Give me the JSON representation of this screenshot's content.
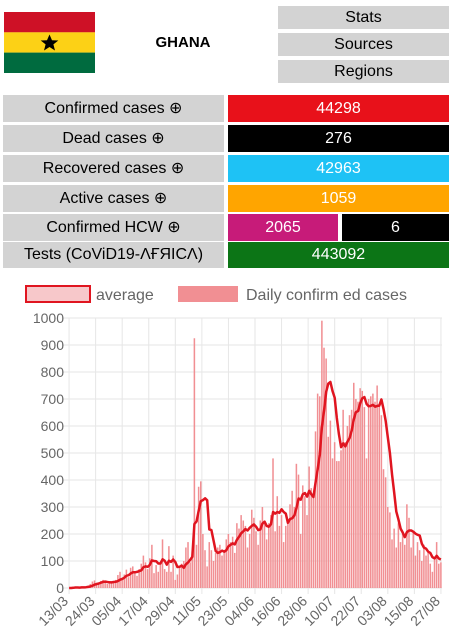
{
  "header": {
    "country": "GHANA"
  },
  "nav": [
    {
      "label": "Stats"
    },
    {
      "label": "Sources"
    },
    {
      "label": "Regions"
    }
  ],
  "stats": {
    "confirmed": {
      "label": "Confirmed cases ⊕",
      "value": "44298",
      "color": "#e8111a"
    },
    "dead": {
      "label": "Dead cases ⊕",
      "value": "276",
      "color": "#000000"
    },
    "recovered": {
      "label": "Recovered cases ⊕",
      "value": "42963",
      "color": "#1ec2f5"
    },
    "active": {
      "label": "Active cases ⊕",
      "value": "1059",
      "color": "#ffa500"
    },
    "hcw": {
      "label": "Confirmed HCW ⊕",
      "value1": "2065",
      "value2": "6",
      "color1": "#c71b79",
      "color2": "#000000"
    },
    "tests": {
      "label": "Tests (CoViD19-ΛҒЯICΛ)",
      "value": "443092",
      "color": "#0c7516"
    }
  },
  "chart_data": {
    "type": "bar+line",
    "legend": [
      "average",
      "Daily confirm ed cases"
    ],
    "legend_position": "top",
    "ylim": [
      0,
      1000
    ],
    "yticks": [
      0,
      100,
      200,
      300,
      400,
      500,
      600,
      700,
      800,
      900,
      1000
    ],
    "xticks": [
      "13/03",
      "24/03",
      "05/04",
      "17/04",
      "29/04",
      "11/05",
      "23/05",
      "04/06",
      "16/06",
      "28/06",
      "10/07",
      "22/07",
      "03/08",
      "15/08",
      "27/08"
    ],
    "grid": true,
    "bar_color": "#f18f93",
    "line_color": "#e01520",
    "daily": [
      0,
      0,
      2,
      5,
      3,
      0,
      6,
      0,
      6,
      9,
      15,
      24,
      28,
      20,
      15,
      26,
      30,
      22,
      15,
      20,
      18,
      25,
      30,
      48,
      60,
      35,
      50,
      68,
      40,
      75,
      80,
      60,
      45,
      70,
      90,
      120,
      95,
      70,
      110,
      160,
      55,
      85,
      60,
      95,
      180,
      70,
      60,
      155,
      60,
      120,
      30,
      50,
      75,
      90,
      100,
      150,
      170,
      95,
      130,
      925,
      160,
      375,
      395,
      200,
      140,
      80,
      170,
      140,
      100,
      130,
      150,
      160,
      120,
      140,
      180,
      200,
      170,
      190,
      130,
      240,
      220,
      270,
      250,
      230,
      150,
      200,
      290,
      260,
      210,
      160,
      250,
      300,
      250,
      180,
      240,
      270,
      480,
      210,
      340,
      230,
      270,
      170,
      230,
      240,
      310,
      360,
      300,
      460,
      420,
      200,
      380,
      340,
      270,
      450,
      370,
      350,
      580,
      720,
      710,
      990,
      890,
      850,
      560,
      620,
      480,
      540,
      470,
      470,
      510,
      660,
      540,
      600,
      640,
      660,
      760,
      700,
      690,
      740,
      730,
      670,
      480,
      700,
      710,
      720,
      690,
      750,
      680,
      640,
      440,
      410,
      300,
      280,
      180,
      220,
      150,
      240,
      170,
      200,
      160,
      310,
      260,
      150,
      210,
      120,
      170,
      140,
      100,
      160,
      120,
      130,
      90,
      60,
      105,
      170,
      90,
      95
    ]
  }
}
